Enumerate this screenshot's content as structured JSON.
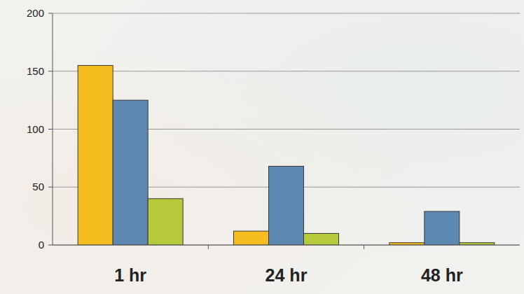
{
  "chart_data": {
    "type": "bar",
    "categories": [
      "1 hr",
      "24 hr",
      "48 hr"
    ],
    "series": [
      {
        "color": "#f5be1e",
        "values": [
          155,
          12,
          2
        ]
      },
      {
        "color": "#5b87b0",
        "values": [
          125,
          68,
          29
        ]
      },
      {
        "color": "#b5c93a",
        "values": [
          40,
          10,
          2
        ]
      }
    ],
    "ylim": [
      0,
      200
    ],
    "yticks": [
      0,
      50,
      100,
      150,
      200
    ],
    "grid": true
  }
}
